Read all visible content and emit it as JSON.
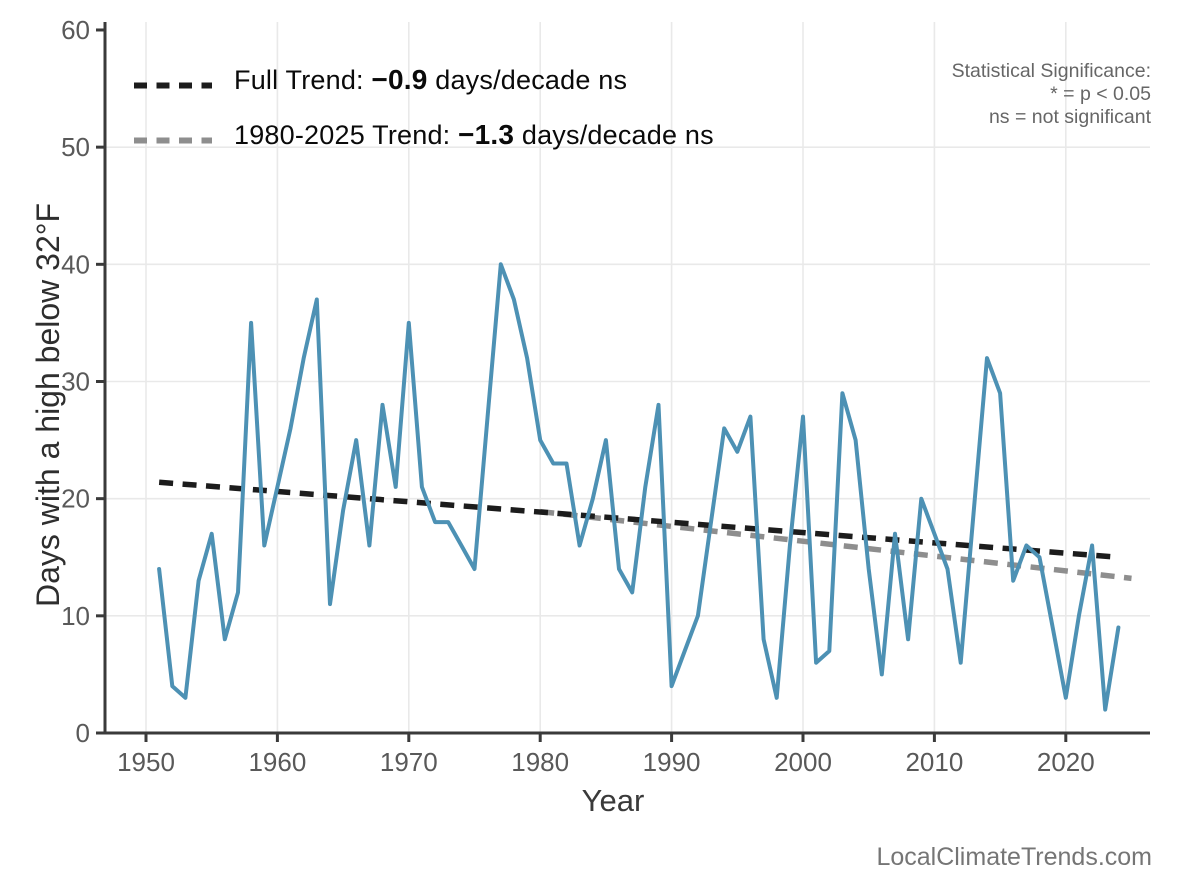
{
  "chart_data": {
    "type": "line",
    "title": "",
    "xlabel": "Year",
    "ylabel": "Days with a high below 32°F",
    "x_ticks": [
      1950,
      1960,
      1970,
      1980,
      1990,
      2000,
      2010,
      2020
    ],
    "y_ticks": [
      0,
      10,
      20,
      30,
      40,
      50,
      60
    ],
    "xlim": [
      1946.9,
      2026.4
    ],
    "ylim": [
      0,
      60.5
    ],
    "grid": "on",
    "legend_position": "upper-left-inside",
    "series": [
      {
        "name": "annual-days-below-32F",
        "color": "#4d91b4",
        "years": [
          1951,
          1952,
          1953,
          1954,
          1955,
          1956,
          1957,
          1958,
          1959,
          1960,
          1961,
          1962,
          1963,
          1964,
          1965,
          1966,
          1967,
          1968,
          1969,
          1970,
          1971,
          1972,
          1973,
          1974,
          1975,
          1976,
          1977,
          1978,
          1979,
          1980,
          1981,
          1982,
          1983,
          1984,
          1985,
          1986,
          1987,
          1988,
          1989,
          1990,
          1991,
          1992,
          1993,
          1994,
          1995,
          1996,
          1997,
          1998,
          1999,
          2000,
          2001,
          2002,
          2003,
          2004,
          2005,
          2006,
          2007,
          2008,
          2009,
          2010,
          2011,
          2012,
          2013,
          2014,
          2015,
          2016,
          2017,
          2018,
          2019,
          2020,
          2021,
          2022,
          2023,
          2024
        ],
        "values": [
          14,
          4,
          3,
          13,
          17,
          8,
          12,
          35,
          16,
          21,
          26,
          32,
          37,
          11,
          19,
          25,
          16,
          28,
          21,
          35,
          21,
          18,
          18,
          16,
          14,
          27,
          40,
          37,
          32,
          25,
          23,
          23,
          16,
          20,
          25,
          14,
          12,
          21,
          28,
          4,
          7,
          10,
          18,
          26,
          24,
          27,
          8,
          3,
          16,
          27,
          6,
          7,
          29,
          25,
          14,
          5,
          17,
          8,
          20,
          17,
          14,
          6,
          19,
          32,
          29,
          13,
          16,
          15,
          9,
          3,
          10,
          16,
          2,
          9
        ]
      }
    ],
    "trend_lines": [
      {
        "name": "full-trend",
        "color": "#1c1c1c",
        "x": [
          1951,
          2024
        ],
        "y": [
          21.4,
          15.0
        ],
        "slope_per_decade": -0.9,
        "significance": "ns"
      },
      {
        "name": "recent-trend",
        "color": "#8e8e8e",
        "x": [
          1980,
          2025
        ],
        "y": [
          18.9,
          13.2
        ],
        "slope_per_decade": -1.3,
        "significance": "ns"
      }
    ]
  },
  "legend": {
    "rows": [
      {
        "prefix": "Full Trend: ",
        "value": "−0.9",
        "suffix": " days/decade ns",
        "color": "#1c1c1c"
      },
      {
        "prefix": "1980-2025 Trend: ",
        "value": "−1.3",
        "suffix": " days/decade ns",
        "color": "#8e8e8e"
      }
    ]
  },
  "stat_note": {
    "line1": "Statistical Significance:",
    "line2": "* = p < 0.05",
    "line3": "ns = not significant"
  },
  "watermark": {
    "text": "LocalClimateTrends.com"
  },
  "style_colors": {
    "spine": "#3a3a3a",
    "tick_label": "#595959",
    "gridline": "#e9e9e9",
    "axis_title": "#2e2e2e"
  }
}
